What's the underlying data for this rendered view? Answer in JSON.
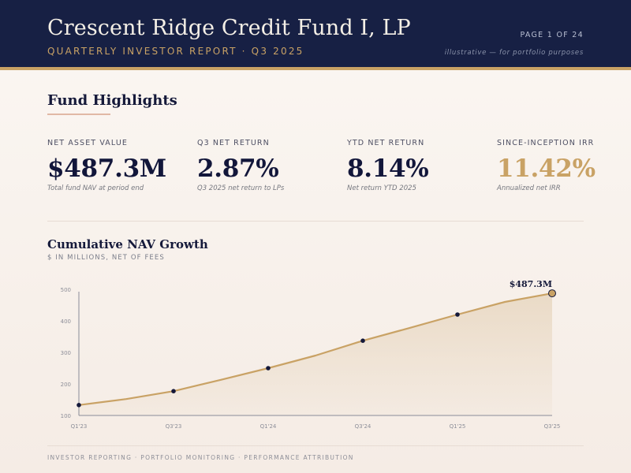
{
  "header": {
    "title": "Crescent Ridge Credit Fund I, LP",
    "subtitle": "QUARTERLY INVESTOR REPORT · Q3 2025",
    "page_indicator": "PAGE 1 OF 24",
    "disclaimer": "illustrative — for portfolio purposes"
  },
  "highlights": {
    "title": "Fund Highlights",
    "kpis": [
      {
        "label": "NET ASSET VALUE",
        "value": "$487.3M",
        "sub": "Total fund NAV at period end"
      },
      {
        "label": "Q3 NET RETURN",
        "value": "2.87%",
        "sub": "Q3 2025 net return to LPs"
      },
      {
        "label": "YTD NET RETURN",
        "value": "8.14%",
        "sub": "Net return YTD 2025"
      },
      {
        "label": "SINCE-INCEPTION IRR",
        "value": "11.42%",
        "sub": "Annualized net IRR"
      }
    ]
  },
  "chart": {
    "title": "Cumulative NAV Growth",
    "subtitle": "$ IN MILLIONS, NET OF FEES"
  },
  "chart_data": {
    "type": "area",
    "title": "Cumulative NAV Growth",
    "subtitle": "$ IN MILLIONS, NET OF FEES",
    "x": [
      "Q1'23",
      "Q2'23",
      "Q3'23",
      "Q4'23",
      "Q1'24",
      "Q2'24",
      "Q3'24",
      "Q4'24",
      "Q1'25",
      "Q2'25",
      "Q3'25"
    ],
    "x_tick_labels": [
      "Q1'23",
      "Q3'23",
      "Q1'24",
      "Q3'24",
      "Q1'25",
      "Q3'25"
    ],
    "values": [
      133,
      152,
      177,
      213,
      250,
      290,
      337,
      378,
      420,
      460,
      487.3
    ],
    "marked_points": [
      "Q1'23",
      "Q3'23",
      "Q1'24",
      "Q3'24",
      "Q1'25",
      "Q3'25"
    ],
    "end_label": "$487.3M",
    "yticks": [
      100,
      200,
      300,
      400,
      500
    ],
    "ylim": [
      100,
      500
    ],
    "grid": false,
    "line_color": "#c9a265",
    "fill_color": "#e9d9c4",
    "point_color": "#14183a"
  },
  "footer": {
    "text": "INVESTOR REPORTING · PORTFOLIO MONITORING · PERFORMANCE ATTRIBUTION"
  },
  "colors": {
    "navy": "#172044",
    "gold": "#c9a265",
    "cream": "#fbf7f3"
  }
}
